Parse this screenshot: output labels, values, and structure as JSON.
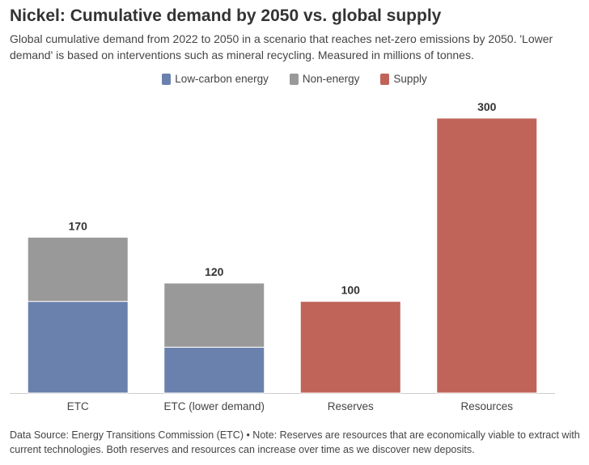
{
  "title": "Nickel: Cumulative demand by 2050 vs. global supply",
  "subtitle": "Global cumulative demand from 2022 to 2050 in a scenario that reaches net-zero emissions by 2050. 'Lower demand' is based on interventions such as mineral recycling. Measured in millions of tonnes.",
  "legend": [
    {
      "label": "Low-carbon energy",
      "color": "#6a81ad"
    },
    {
      "label": "Non-energy",
      "color": "#999999"
    },
    {
      "label": "Supply",
      "color": "#c0645a"
    }
  ],
  "footer": "Data Source: Energy Transitions Commission (ETC) • Note: Reserves are resources that are economically viable to extract with current technologies. Both reserves and resources can increase over time as we discover new deposits.",
  "chart_data": {
    "type": "bar",
    "stacked": true,
    "categories": [
      "ETC",
      "ETC (lower demand)",
      "Reserves",
      "Resources"
    ],
    "series": [
      {
        "name": "Low-carbon energy",
        "color": "#6a81ad",
        "values": [
          100,
          50,
          0,
          0
        ]
      },
      {
        "name": "Non-energy",
        "color": "#999999",
        "values": [
          70,
          70,
          0,
          0
        ]
      },
      {
        "name": "Supply",
        "color": "#c0645a",
        "values": [
          0,
          0,
          100,
          300
        ]
      }
    ],
    "totals": [
      170,
      120,
      100,
      300
    ],
    "total_labels": [
      "170",
      "120",
      "100",
      "300"
    ],
    "ylim": [
      0,
      300
    ],
    "grid": false,
    "legend_position": "top-center"
  }
}
